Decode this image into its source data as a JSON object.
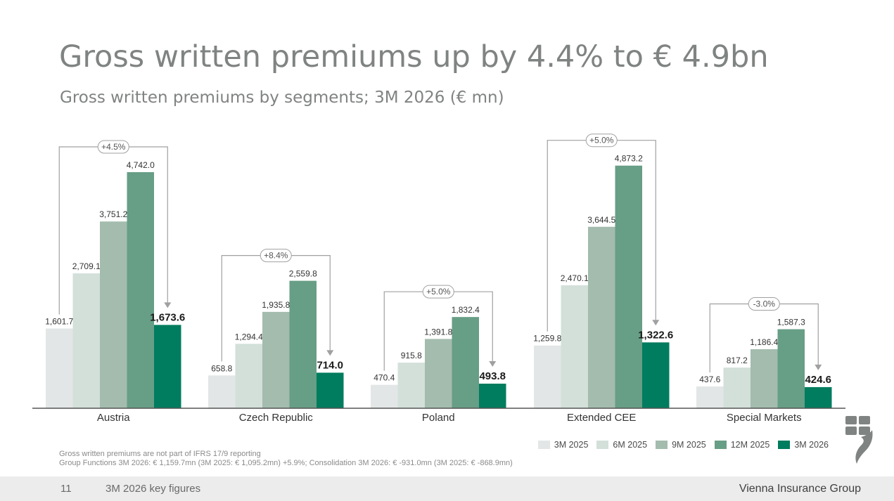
{
  "title": "Gross written premiums up by 4.4% to € 4.9bn",
  "subtitle": "Gross written premiums by segments; 3M 2026 (€ mn)",
  "chart_data": {
    "type": "bar",
    "categories": [
      "Austria",
      "Czech Republic",
      "Poland",
      "Extended CEE",
      "Special Markets"
    ],
    "series": [
      {
        "name": "3M 2025",
        "color": "#e3e6e6",
        "values": [
          1601.7,
          658.8,
          470.4,
          1259.8,
          437.6
        ],
        "labels": [
          "1,601.7",
          "658.8",
          "470.4",
          "1,259.8",
          "437.6"
        ]
      },
      {
        "name": "6M 2025",
        "color": "#d3e0da",
        "values": [
          2709.1,
          1294.4,
          915.8,
          2470.1,
          817.2
        ],
        "labels": [
          "2,709.1",
          "1,294.4",
          "915.8",
          "2,470.1",
          "817.2"
        ]
      },
      {
        "name": "9M 2025",
        "color": "#a3bcae",
        "values": [
          3751.2,
          1935.8,
          1391.8,
          3644.5,
          1186.4
        ],
        "labels": [
          "3,751.2",
          "1,935.8",
          "1,391.8",
          "3,644.5",
          "1,186.4"
        ]
      },
      {
        "name": "12M 2025",
        "color": "#679e86",
        "values": [
          4742.0,
          2559.8,
          1832.4,
          4873.2,
          1587.3
        ],
        "labels": [
          "4,742.0",
          "2,559.8",
          "1,832.4",
          "4,873.2",
          "1,587.3"
        ]
      },
      {
        "name": "3M 2026",
        "color": "#007c5e",
        "values": [
          1673.6,
          714.0,
          493.8,
          1322.6,
          424.6
        ],
        "labels": [
          "1,673.6",
          "714.0",
          "493.8",
          "1,322.6",
          "424.6"
        ]
      }
    ],
    "changes": [
      "+4.5%",
      "+8.4%",
      "+5.0%",
      "+5.0%",
      "-3.0%"
    ],
    "ylim": [
      0,
      5000
    ],
    "xlabel": "",
    "ylabel": "",
    "grid": false,
    "legend": "bottom-right"
  },
  "notes": [
    "Gross written premiums are not part of IFRS 17/9 reporting",
    "Group Functions 3M 2026: € 1,159.7mn (3M 2025: € 1,095.2mn) +5.9%; Consolidation 3M 2026: € -931.0mn (3M 2025: € -868.9mn)"
  ],
  "footer": {
    "page": "11",
    "text": "3M 2026 key figures",
    "brand": "Vienna Insurance Group"
  },
  "logo_color": "#7f8381"
}
